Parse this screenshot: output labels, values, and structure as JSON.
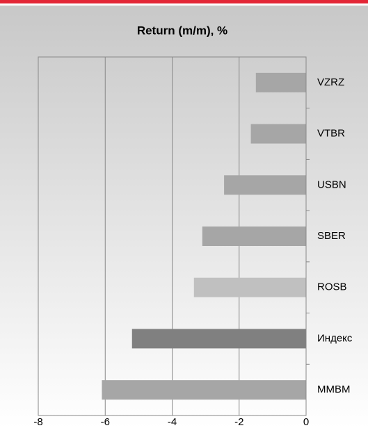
{
  "chart_data": {
    "type": "hbar",
    "title": "Return (m/m), %",
    "categories": [
      "VZRZ",
      "VTBR",
      "USBN",
      "SBER",
      "ROSB",
      "Индекс",
      "MMBM"
    ],
    "values": [
      -1.5,
      -1.65,
      -2.45,
      -3.1,
      -3.35,
      -5.2,
      -6.1
    ],
    "colors": [
      "#a6a6a6",
      "#a6a6a6",
      "#a6a6a6",
      "#a6a6a6",
      "#c0c0c0",
      "#808080",
      "#a6a6a6"
    ],
    "xlim": [
      -8,
      0
    ],
    "xticks": [
      -8,
      -6,
      -4,
      -2,
      0
    ],
    "grid": true
  }
}
